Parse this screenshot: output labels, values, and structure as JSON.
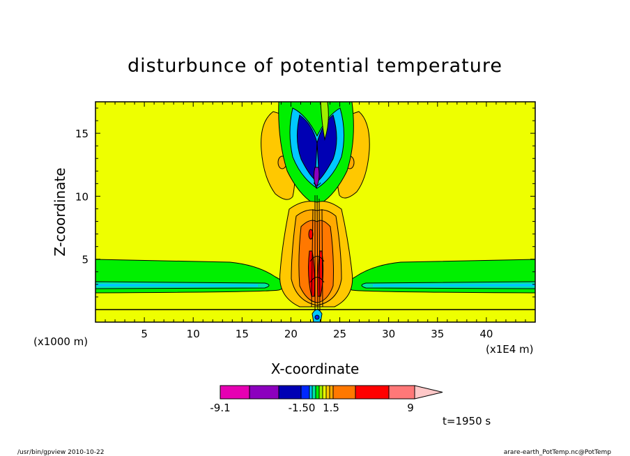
{
  "chart_data": {
    "type": "heatmap",
    "title": "disturbunce of potential temperature",
    "xlabel": "X-coordinate",
    "ylabel": "Z-coordinate",
    "x_unit_note": "(x1E4 m)",
    "z_unit_note": "(x1000 m)",
    "xlim": [
      0,
      45
    ],
    "ylim": [
      0,
      17.5
    ],
    "x_ticks": [
      "5",
      "10",
      "15",
      "20",
      "25",
      "30",
      "35",
      "40"
    ],
    "y_ticks": [
      "5",
      "10",
      "15"
    ],
    "x_tick_values": [
      5,
      10,
      15,
      20,
      25,
      30,
      35,
      40
    ],
    "y_tick_values": [
      5,
      10,
      15
    ],
    "background_color": "#eeff00",
    "colorbar": {
      "colors": [
        "#e600b3",
        "#8c00be",
        "#0000b4",
        "#0028ff",
        "#00c8ff",
        "#00e6a0",
        "#00f000",
        "#a0f000",
        "#eeff00",
        "#ffc800",
        "#ffaa00",
        "#ff7800",
        "#ff0000",
        "#ff7878",
        "#ffc8c8"
      ],
      "labels": [
        "-9.1",
        "-1.50",
        "1.5",
        "9"
      ]
    },
    "time_label": "t=1950 s"
  },
  "footer": {
    "left": "/usr/bin/gpview  2010-10-22",
    "right": "arare-earth_PotTemp.nc@PotTemp"
  }
}
